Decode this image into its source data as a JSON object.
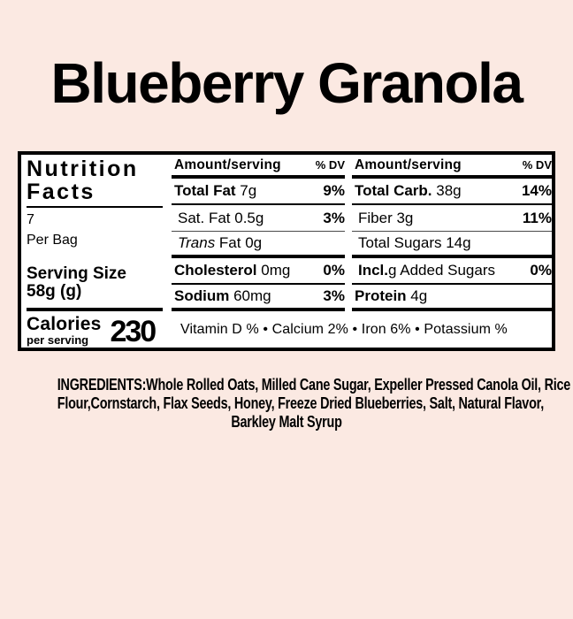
{
  "page": {
    "title": "Blueberry Granola",
    "bg_color": "#fbe9e2",
    "panel_bg": "#ffffff",
    "text_color": "#000000"
  },
  "panel": {
    "brand": [
      "Nutrition",
      "Facts"
    ],
    "servings_count": "7",
    "servings_unit": "Per Bag",
    "serving_size_label": "Serving Size",
    "serving_size_value": "58g (g)",
    "calories_label": "Calories",
    "calories_sub": "per serving",
    "calories_value": "230",
    "amount_header": "Amount/serving",
    "dv_header": "% DV",
    "left_rows": [
      {
        "bold": "Total Fat",
        "italic": "",
        "rest": " 7g",
        "dv": "9%"
      },
      {
        "bold": "",
        "italic": "",
        "rest": "Sat. Fat 0.5g",
        "dv": "3%"
      },
      {
        "bold": "",
        "italic": "Trans",
        "rest": " Fat 0g",
        "dv": ""
      },
      {
        "bold": "Cholesterol",
        "italic": "",
        "rest": " 0mg",
        "dv": "0%"
      },
      {
        "bold": "Sodium",
        "italic": "",
        "rest": " 60mg",
        "dv": "3%"
      }
    ],
    "right_rows": [
      {
        "bold": "Total Carb.",
        "italic": "",
        "rest": " 38g",
        "dv": "14%"
      },
      {
        "bold": "",
        "italic": "",
        "rest": "Fiber 3g",
        "dv": "11%"
      },
      {
        "bold": "",
        "italic": "",
        "rest": "Total Sugars 14g",
        "dv": ""
      },
      {
        "bold": "Incl.",
        "italic": "",
        "rest": "g Added Sugars",
        "dv": "0%"
      },
      {
        "bold": "Protein",
        "italic": "",
        "rest": " 4g",
        "dv": ""
      }
    ],
    "vitamins": "Vitamin D % • Calcium 2% • Iron 6% • Potassium %"
  },
  "ingredients": {
    "lines": [
      "INGREDIENTS:Whole Rolled Oats, Milled Cane Sugar, Expeller Pressed Canola Oil, Rice",
      "Flour,Cornstarch, Flax Seeds, Honey, Freeze Dried Blueberries, Salt, Natural Flavor,",
      "Barkley Malt Syrup"
    ]
  }
}
